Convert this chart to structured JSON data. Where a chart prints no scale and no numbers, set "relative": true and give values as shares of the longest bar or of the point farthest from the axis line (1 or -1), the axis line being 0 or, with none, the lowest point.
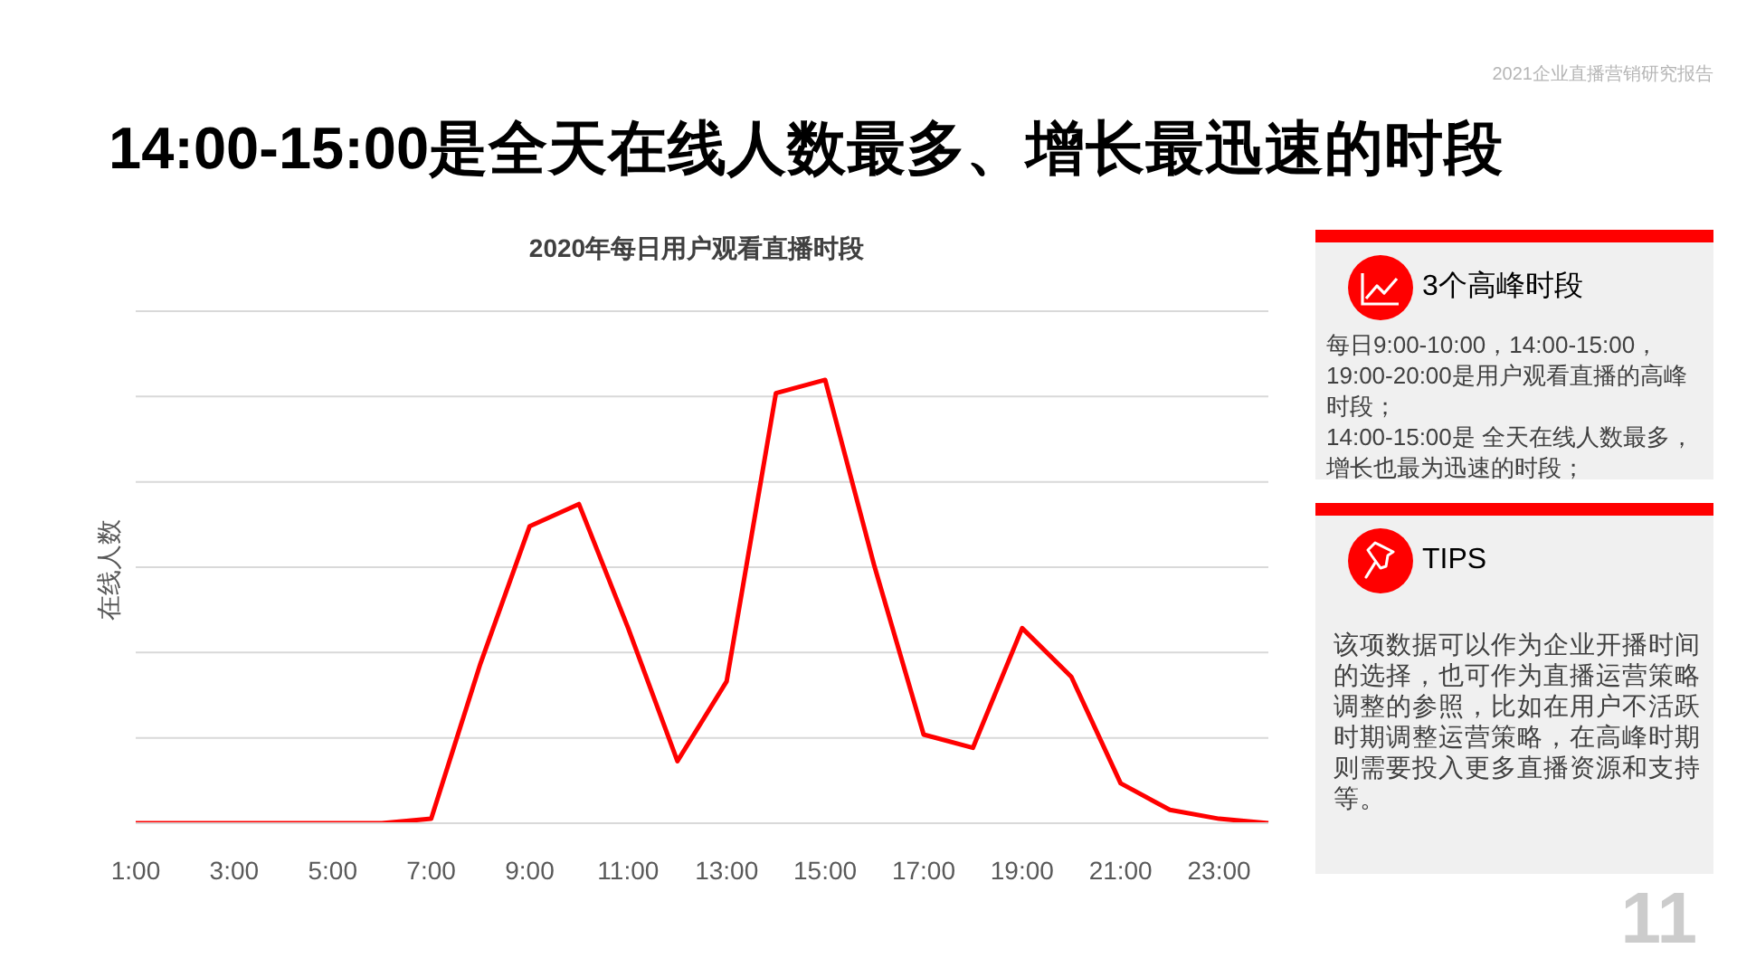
{
  "chart_data": {
    "type": "line",
    "title": "14:00-15:00是全天在线人数最多、增长最迅速的时段",
    "subtitle": "2020年每日用户观看直播时段",
    "ylabel": "在线人数",
    "categories": [
      "1:00",
      null,
      "3:00",
      null,
      "5:00",
      null,
      "7:00",
      null,
      "9:00",
      null,
      "11:00",
      null,
      "13:00",
      null,
      "15:00",
      null,
      "17:00",
      null,
      "19:00",
      null,
      "21:00",
      null,
      "23:00",
      null
    ],
    "values": [
      0,
      0,
      0,
      0,
      0,
      0,
      0.01,
      0.36,
      0.67,
      0.72,
      0.44,
      0.14,
      0.32,
      0.97,
      1,
      0.58,
      0.2,
      0.17,
      0.44,
      0.33,
      0.09,
      0.03,
      0.01,
      0
    ],
    "color": "#ff0000",
    "relative": true,
    "grid": "y",
    "line_style": "solid",
    "annotations": [
      "2021企业直播营销研究报告",
      "3个高峰时段",
      "每日9:00-10:00，14:00-15:00，19:00-20:00是用户观看直播的高峰时段；",
      "14:00-15:00是 全天在线人数最多，增长也最为迅速的时段；",
      "TIPS",
      "该项数据可以作为企业开播时间的选择，也可作为直播运营策略调整的参照，比如在用户不活跃时期调整运营策略，在高峰时期则需要投入更多直播资源和支持等。",
      "11"
    ]
  }
}
